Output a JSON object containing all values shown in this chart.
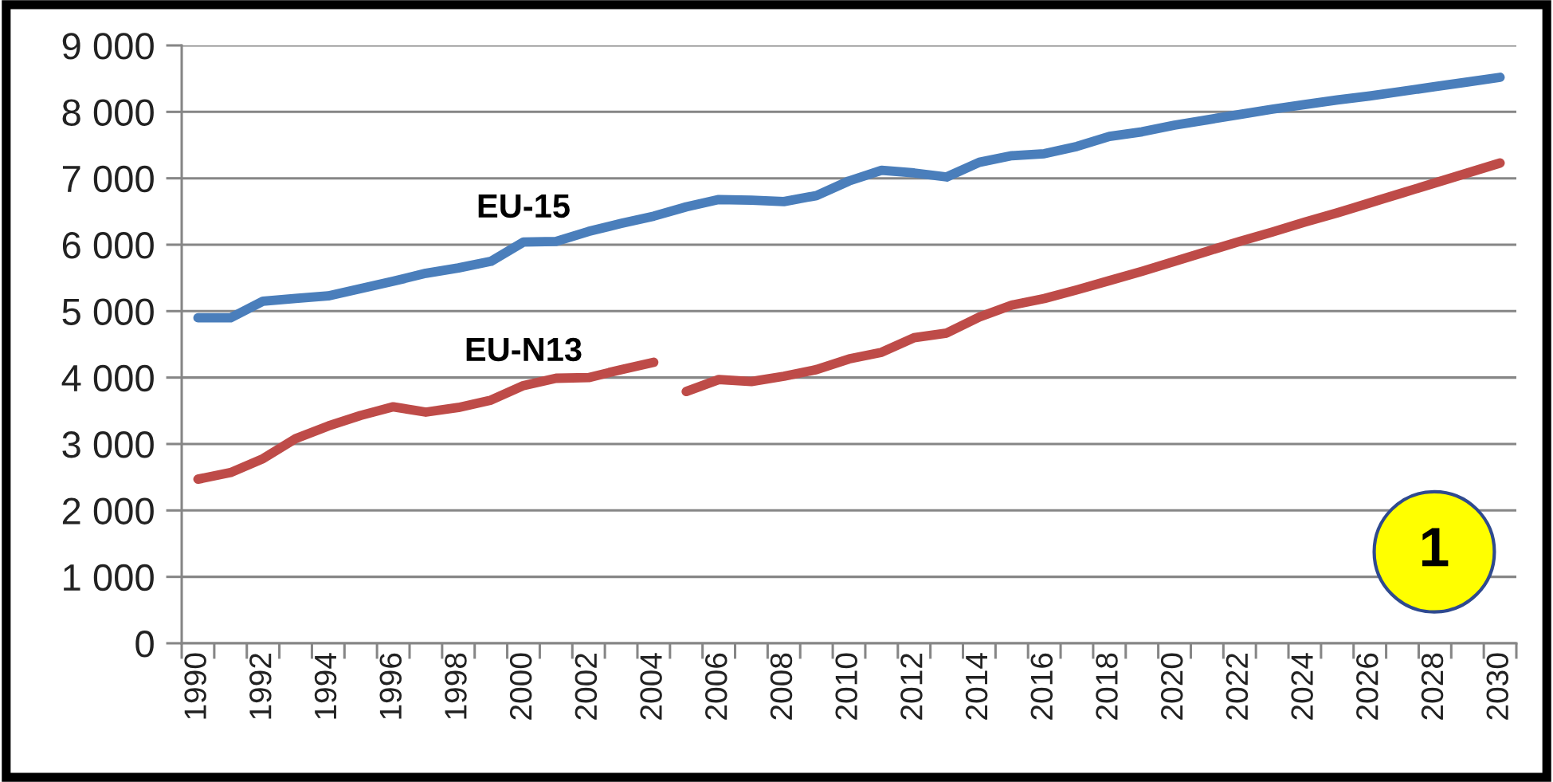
{
  "chart_data": {
    "type": "line",
    "categories": [
      "1990",
      null,
      "1992",
      null,
      "1994",
      null,
      "1996",
      null,
      "1998",
      null,
      "2000",
      null,
      "2002",
      null,
      "2004",
      null,
      "2006",
      null,
      "2008",
      null,
      "2010",
      null,
      "2012",
      null,
      "2014",
      null,
      "2016",
      null,
      "2018",
      null,
      "2020",
      null,
      "2022",
      null,
      "2024",
      null,
      "2026",
      null,
      "2028",
      null,
      "2030"
    ],
    "series": [
      {
        "name": "EU-15",
        "color": "#4a7ebb",
        "values": [
          4900,
          4900,
          5150,
          5190,
          5230,
          5340,
          5450,
          5570,
          5650,
          5750,
          6040,
          6050,
          6200,
          6320,
          6430,
          6570,
          6680,
          6670,
          6650,
          6740,
          6960,
          7120,
          7080,
          7020,
          7240,
          7340,
          7370,
          7480,
          7630,
          7700,
          7800,
          7880,
          7960,
          8040,
          8110,
          8180,
          8240,
          8310,
          8380,
          8450,
          8520
        ]
      },
      {
        "name": "EU-N13",
        "color": "#be4b48",
        "values": [
          2470,
          2570,
          2780,
          3080,
          3270,
          3430,
          3560,
          3480,
          3550,
          3660,
          3880,
          3990,
          4000,
          4120,
          4230,
          null,
          null,
          null,
          null,
          null,
          null,
          null,
          null,
          null,
          null,
          null,
          null,
          null,
          null,
          null,
          null,
          null,
          null,
          null,
          null,
          null,
          null,
          null,
          null,
          null,
          null
        ]
      },
      {
        "color": "#be4b48",
        "values": [
          null,
          null,
          null,
          null,
          null,
          null,
          null,
          null,
          null,
          null,
          null,
          null,
          null,
          null,
          null,
          3790,
          3970,
          3940,
          4020,
          4120,
          4280,
          4380,
          4600,
          4670,
          4910,
          5090,
          5190,
          5320,
          5460,
          5600,
          5750,
          5900,
          6050,
          6190,
          6340,
          6480,
          6630,
          6780,
          6930,
          7080,
          7230
        ]
      }
    ],
    "ylim": [
      0,
      9000
    ],
    "yticks": [
      0,
      {
        "value": 1000,
        "label": "1 000"
      },
      {
        "value": 2000,
        "label": "2 000"
      },
      {
        "value": 3000,
        "label": "3 000"
      },
      {
        "value": 4000,
        "label": "4 000"
      },
      {
        "value": 5000,
        "label": "5 000"
      },
      {
        "value": 6000,
        "label": "6 000"
      },
      {
        "value": 7000,
        "label": "7 000"
      },
      {
        "value": 8000,
        "label": "8 000"
      },
      {
        "value": 9000,
        "label": "9 000"
      }
    ],
    "grid": "y",
    "legend": false,
    "annotations": [
      "1"
    ]
  }
}
